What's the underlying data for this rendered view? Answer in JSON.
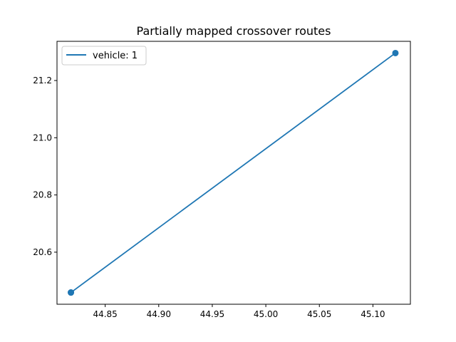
{
  "chart_data": {
    "type": "line",
    "title": "Partially mapped crossover routes",
    "xlabel": "",
    "ylabel": "",
    "xlim": [
      44.805,
      45.135
    ],
    "ylim": [
      20.418,
      21.337
    ],
    "xticks": [
      44.85,
      44.9,
      44.95,
      45.0,
      45.05,
      45.1
    ],
    "xtick_labels": [
      "44.85",
      "44.90",
      "44.95",
      "45.00",
      "45.05",
      "45.10"
    ],
    "yticks": [
      20.6,
      20.8,
      21.0,
      21.2
    ],
    "ytick_labels": [
      "20.6",
      "20.8",
      "21.0",
      "21.2"
    ],
    "grid": false,
    "legend": {
      "position": "top-left",
      "entries": [
        "vehicle: 1"
      ]
    },
    "series": [
      {
        "name": "vehicle: 1",
        "color": "#1f77b4",
        "x": [
          44.818,
          45.121,
          44.818
        ],
        "y": [
          20.459,
          21.296,
          20.459
        ],
        "markers": true
      }
    ]
  }
}
